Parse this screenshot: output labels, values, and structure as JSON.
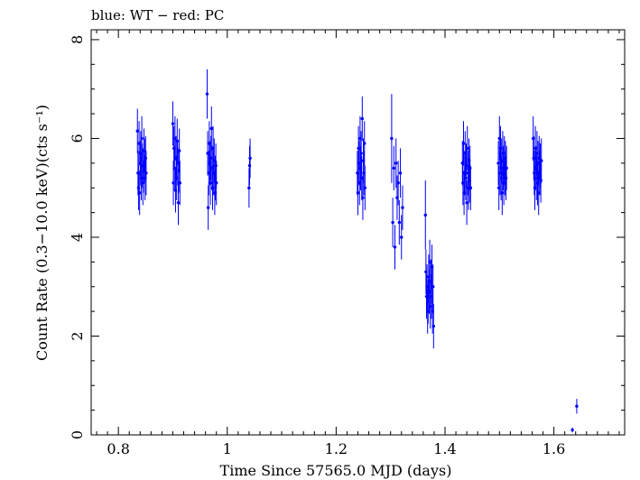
{
  "chart_data": {
    "type": "scatter",
    "title": "blue: WT − red: PC",
    "xlabel": "Time Since 57565.0 MJD (days)",
    "ylabel": "Count Rate (0.3−10.0 keV)(cts s⁻¹)",
    "xlim": [
      0.75,
      1.73
    ],
    "ylim": [
      0,
      8.2
    ],
    "xticks": [
      0.8,
      1.0,
      1.2,
      1.4,
      1.6
    ],
    "xtick_labels": [
      "0.8",
      "1",
      "1.2",
      "1.4",
      "1.6"
    ],
    "yticks": [
      0,
      2,
      4,
      6,
      8
    ],
    "ytick_labels": [
      "0",
      "2",
      "4",
      "6",
      "8"
    ],
    "grid": false,
    "series": [
      {
        "name": "WT",
        "color": "#0000ff",
        "points": [
          [
            0.835,
            6.15,
            0.45
          ],
          [
            0.836,
            5.3,
            0.45
          ],
          [
            0.837,
            5.0,
            0.45
          ],
          [
            0.838,
            5.9,
            0.45
          ],
          [
            0.839,
            4.9,
            0.45
          ],
          [
            0.84,
            5.5,
            0.45
          ],
          [
            0.841,
            5.7,
            0.45
          ],
          [
            0.842,
            5.2,
            0.45
          ],
          [
            0.843,
            6.0,
            0.45
          ],
          [
            0.844,
            5.45,
            0.45
          ],
          [
            0.845,
            5.1,
            0.45
          ],
          [
            0.846,
            5.35,
            0.45
          ],
          [
            0.847,
            5.75,
            0.45
          ],
          [
            0.848,
            5.55,
            0.45
          ],
          [
            0.849,
            5.2,
            0.45
          ],
          [
            0.85,
            5.6,
            0.45
          ],
          [
            0.851,
            5.3,
            0.45
          ],
          [
            0.9,
            6.3,
            0.45
          ],
          [
            0.901,
            5.1,
            0.45
          ],
          [
            0.902,
            5.8,
            0.45
          ],
          [
            0.903,
            5.4,
            0.45
          ],
          [
            0.904,
            6.0,
            0.45
          ],
          [
            0.905,
            4.95,
            0.45
          ],
          [
            0.906,
            5.6,
            0.45
          ],
          [
            0.907,
            5.2,
            0.45
          ],
          [
            0.908,
            5.95,
            0.45
          ],
          [
            0.909,
            5.5,
            0.45
          ],
          [
            0.91,
            4.7,
            0.45
          ],
          [
            0.911,
            5.35,
            0.45
          ],
          [
            0.912,
            5.75,
            0.45
          ],
          [
            0.913,
            5.1,
            0.45
          ],
          [
            0.963,
            6.9,
            0.5
          ],
          [
            0.964,
            5.7,
            0.45
          ],
          [
            0.965,
            4.6,
            0.45
          ],
          [
            0.966,
            5.3,
            0.45
          ],
          [
            0.967,
            5.9,
            0.45
          ],
          [
            0.968,
            5.5,
            0.45
          ],
          [
            0.969,
            5.1,
            0.45
          ],
          [
            0.97,
            5.6,
            0.45
          ],
          [
            0.971,
            6.2,
            0.45
          ],
          [
            0.972,
            5.4,
            0.45
          ],
          [
            0.973,
            5.0,
            0.45
          ],
          [
            0.974,
            5.8,
            0.45
          ],
          [
            0.975,
            5.3,
            0.45
          ],
          [
            0.976,
            5.55,
            0.45
          ],
          [
            0.977,
            4.9,
            0.45
          ],
          [
            0.978,
            5.2,
            0.45
          ],
          [
            0.979,
            5.45,
            0.45
          ],
          [
            0.98,
            5.1,
            0.45
          ],
          [
            1.04,
            5.0,
            0.4
          ],
          [
            1.041,
            5.45,
            0.4
          ],
          [
            1.042,
            5.6,
            0.4
          ],
          [
            1.239,
            5.3,
            0.45
          ],
          [
            1.24,
            4.9,
            0.45
          ],
          [
            1.241,
            5.8,
            0.45
          ],
          [
            1.242,
            5.5,
            0.45
          ],
          [
            1.243,
            5.1,
            0.45
          ],
          [
            1.244,
            6.0,
            0.45
          ],
          [
            1.245,
            5.4,
            0.45
          ],
          [
            1.246,
            5.7,
            0.45
          ],
          [
            1.247,
            5.2,
            0.45
          ],
          [
            1.248,
            6.4,
            0.45
          ],
          [
            1.249,
            4.8,
            0.45
          ],
          [
            1.25,
            5.55,
            0.45
          ],
          [
            1.251,
            5.3,
            0.45
          ],
          [
            1.252,
            5.9,
            0.45
          ],
          [
            1.253,
            5.0,
            0.45
          ],
          [
            1.302,
            6.0,
            0.9
          ],
          [
            1.304,
            4.3,
            0.5
          ],
          [
            1.306,
            5.4,
            0.45
          ],
          [
            1.308,
            3.8,
            0.45
          ],
          [
            1.31,
            5.5,
            0.5
          ],
          [
            1.312,
            4.8,
            0.45
          ],
          [
            1.314,
            5.1,
            0.45
          ],
          [
            1.316,
            4.3,
            0.45
          ],
          [
            1.318,
            5.3,
            0.5
          ],
          [
            1.32,
            4.0,
            0.45
          ],
          [
            1.322,
            4.6,
            0.45
          ],
          [
            1.364,
            4.45,
            0.7
          ],
          [
            1.365,
            3.3,
            0.45
          ],
          [
            1.366,
            2.8,
            0.45
          ],
          [
            1.367,
            3.0,
            0.45
          ],
          [
            1.368,
            2.5,
            0.45
          ],
          [
            1.369,
            2.7,
            0.45
          ],
          [
            1.37,
            3.2,
            0.45
          ],
          [
            1.371,
            2.9,
            0.45
          ],
          [
            1.372,
            3.5,
            0.45
          ],
          [
            1.373,
            2.6,
            0.45
          ],
          [
            1.374,
            3.1,
            0.45
          ],
          [
            1.375,
            2.8,
            0.45
          ],
          [
            1.376,
            3.4,
            0.45
          ],
          [
            1.377,
            2.5,
            0.45
          ],
          [
            1.378,
            3.0,
            0.45
          ],
          [
            1.379,
            2.2,
            0.45
          ],
          [
            1.432,
            5.5,
            0.45
          ],
          [
            1.433,
            5.1,
            0.45
          ],
          [
            1.434,
            5.9,
            0.45
          ],
          [
            1.435,
            4.9,
            0.45
          ],
          [
            1.436,
            5.3,
            0.45
          ],
          [
            1.437,
            5.7,
            0.45
          ],
          [
            1.438,
            5.2,
            0.45
          ],
          [
            1.439,
            5.45,
            0.45
          ],
          [
            1.44,
            4.7,
            0.45
          ],
          [
            1.441,
            5.8,
            0.45
          ],
          [
            1.442,
            5.3,
            0.45
          ],
          [
            1.443,
            5.0,
            0.45
          ],
          [
            1.444,
            5.55,
            0.45
          ],
          [
            1.445,
            5.15,
            0.45
          ],
          [
            1.446,
            5.4,
            0.45
          ],
          [
            1.447,
            5.0,
            0.45
          ],
          [
            1.498,
            5.5,
            0.45
          ],
          [
            1.499,
            5.0,
            0.45
          ],
          [
            1.5,
            6.0,
            0.45
          ],
          [
            1.501,
            5.3,
            0.45
          ],
          [
            1.502,
            5.8,
            0.45
          ],
          [
            1.503,
            5.2,
            0.45
          ],
          [
            1.504,
            5.55,
            0.45
          ],
          [
            1.505,
            4.9,
            0.45
          ],
          [
            1.506,
            5.7,
            0.45
          ],
          [
            1.507,
            5.4,
            0.45
          ],
          [
            1.508,
            5.1,
            0.45
          ],
          [
            1.509,
            5.6,
            0.45
          ],
          [
            1.51,
            5.3,
            0.45
          ],
          [
            1.511,
            5.5,
            0.45
          ],
          [
            1.512,
            5.2,
            0.45
          ],
          [
            1.513,
            5.4,
            0.45
          ],
          [
            1.562,
            6.0,
            0.45
          ],
          [
            1.563,
            5.6,
            0.45
          ],
          [
            1.564,
            5.3,
            0.45
          ],
          [
            1.565,
            5.0,
            0.45
          ],
          [
            1.566,
            5.8,
            0.45
          ],
          [
            1.567,
            5.4,
            0.45
          ],
          [
            1.568,
            5.2,
            0.45
          ],
          [
            1.569,
            5.7,
            0.45
          ],
          [
            1.57,
            5.1,
            0.45
          ],
          [
            1.571,
            5.5,
            0.45
          ],
          [
            1.572,
            4.9,
            0.45
          ],
          [
            1.573,
            5.6,
            0.45
          ],
          [
            1.574,
            5.3,
            0.45
          ],
          [
            1.575,
            5.45,
            0.45
          ],
          [
            1.576,
            5.15,
            0.45
          ],
          [
            1.577,
            5.55,
            0.45
          ],
          [
            1.634,
            0.1,
            0.05
          ],
          [
            1.642,
            0.58,
            0.15
          ]
        ]
      }
    ]
  }
}
